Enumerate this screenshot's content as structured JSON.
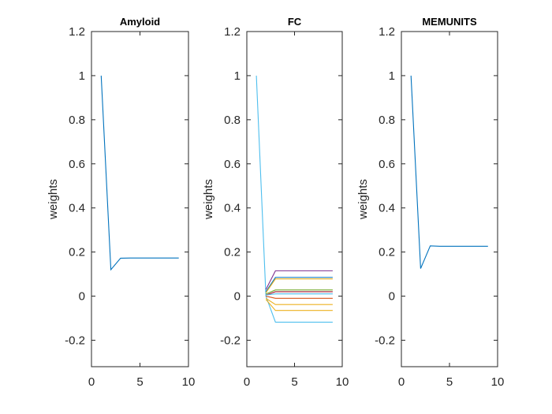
{
  "chart_data": [
    {
      "type": "line",
      "title": "Amyloid",
      "ylabel": "weights",
      "xlim": [
        0,
        10
      ],
      "ylim": [
        -0.32,
        1.2
      ],
      "xticks": [
        "0",
        "5",
        "10"
      ],
      "yticks": [
        "-0.2",
        "0",
        "0.2",
        "0.4",
        "0.6",
        "0.8",
        "1",
        "1.2"
      ],
      "x": [
        1,
        2,
        3,
        4,
        5,
        6,
        7,
        8,
        9
      ],
      "series": [
        {
          "color": "#0072BD",
          "values": [
            1.0,
            0.12,
            0.172,
            0.173,
            0.173,
            0.173,
            0.173,
            0.173,
            0.173
          ]
        }
      ]
    },
    {
      "type": "line",
      "title": "FC",
      "ylabel": "weights",
      "xlim": [
        0,
        10
      ],
      "ylim": [
        -0.32,
        1.2
      ],
      "xticks": [
        "0",
        "5",
        "10"
      ],
      "yticks": [
        "-0.2",
        "0",
        "0.2",
        "0.4",
        "0.6",
        "0.8",
        "1",
        "1.2"
      ],
      "x": [
        1,
        2,
        3,
        4,
        5,
        6,
        7,
        8,
        9
      ],
      "series": [
        {
          "color": "#4DBEEE",
          "values": [
            1.0,
            0.0,
            -0.118,
            -0.118,
            -0.118,
            -0.118,
            -0.118,
            -0.118,
            -0.118
          ]
        },
        {
          "color": "#7E2F8E",
          "values": [
            null,
            0.03,
            0.115,
            0.115,
            0.115,
            0.115,
            0.115,
            0.115,
            0.115
          ]
        },
        {
          "color": "#0072BD",
          "values": [
            null,
            0.02,
            0.085,
            0.085,
            0.085,
            0.085,
            0.085,
            0.085,
            0.085
          ]
        },
        {
          "color": "#EDB120",
          "values": [
            null,
            0.015,
            0.078,
            0.078,
            0.078,
            0.078,
            0.078,
            0.078,
            0.078
          ]
        },
        {
          "color": "#77AC30",
          "values": [
            null,
            0.01,
            0.028,
            0.028,
            0.028,
            0.028,
            0.028,
            0.028,
            0.028
          ]
        },
        {
          "color": "#A2142F",
          "values": [
            null,
            0.005,
            0.02,
            0.02,
            0.02,
            0.02,
            0.02,
            0.02,
            0.02
          ]
        },
        {
          "color": "#4DBEEE",
          "values": [
            null,
            0.005,
            0.01,
            0.01,
            0.01,
            0.01,
            0.01,
            0.01,
            0.01
          ]
        },
        {
          "color": "#D95319",
          "values": [
            null,
            0.0,
            -0.01,
            -0.01,
            -0.01,
            -0.01,
            -0.01,
            -0.01,
            -0.01
          ]
        },
        {
          "color": "#EDB120",
          "values": [
            null,
            -0.01,
            -0.038,
            -0.038,
            -0.038,
            -0.038,
            -0.038,
            -0.038,
            -0.038
          ]
        },
        {
          "color": "#EDB120",
          "values": [
            null,
            -0.015,
            -0.065,
            -0.065,
            -0.065,
            -0.065,
            -0.065,
            -0.065,
            -0.065
          ]
        }
      ]
    },
    {
      "type": "line",
      "title": "MEMUNITS",
      "ylabel": "weights",
      "xlim": [
        0,
        10
      ],
      "ylim": [
        -0.32,
        1.2
      ],
      "xticks": [
        "0",
        "5",
        "10"
      ],
      "yticks": [
        "-0.2",
        "0",
        "0.2",
        "0.4",
        "0.6",
        "0.8",
        "1",
        "1.2"
      ],
      "x": [
        1,
        2,
        3,
        4,
        5,
        6,
        7,
        8,
        9
      ],
      "series": [
        {
          "color": "#0072BD",
          "values": [
            1.0,
            0.125,
            0.228,
            0.226,
            0.226,
            0.226,
            0.226,
            0.226,
            0.226
          ]
        }
      ]
    }
  ]
}
